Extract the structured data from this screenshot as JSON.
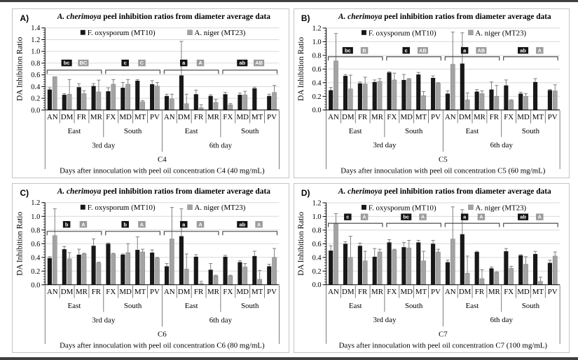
{
  "figure": {
    "panel_labels": [
      "A)",
      "B)",
      "C)",
      "D)"
    ],
    "title_italic": "A. cherimoya",
    "title_rest": " peel inhibition ratios from diameter average data",
    "ylabel": "DA Inhibition Ratio",
    "legend": [
      "F. oxysporum (MT10)",
      "A. niger (MT23)"
    ],
    "colors": {
      "mt10_bar": "#181818",
      "mt23_bar": "#a3a3a3",
      "mt23_bar_edge": "#808080",
      "error_bar": "#7f7f7f",
      "gridline": "#d9d9d9",
      "axis": "#000000",
      "bracket": "#3d3d3d",
      "sig_box_black": "#141414",
      "sig_box_gray": "#9b9b9b",
      "sig_text": "#ffffff",
      "panel_border": "#c4c4c4",
      "frame_edge": "#3f3f3f",
      "background": "#ffffff"
    }
  },
  "chart_data": [
    {
      "type": "bar",
      "panel_label": "A)",
      "title": "A. cherimoya peel inhibition ratios from diameter average data",
      "ylabel": "DA Inhibition Ratio",
      "ylim": [
        0,
        1.4
      ],
      "ytick_step": 0.2,
      "grid": true,
      "legend_position": "top-inside",
      "categories": [
        "AN",
        "DM",
        "FR",
        "MR",
        "FX",
        "MD",
        "MT",
        "PV",
        "AN",
        "DM",
        "FR",
        "MR",
        "FX",
        "MD",
        "MT",
        "PV"
      ],
      "region_groups": [
        "East",
        "South",
        "East",
        "South"
      ],
      "day_groups": [
        "3rd day",
        "6th day"
      ],
      "conc_label": "C4",
      "xlabel": "Days after innoculation with peel oil concentration C4 (40 mg/mL)",
      "series": [
        {
          "name": "F. oxysporum (MT10)",
          "values": [
            0.35,
            0.26,
            0.39,
            0.41,
            0.32,
            0.38,
            0.5,
            0.44,
            0.24,
            0.59,
            0.27,
            0.24,
            0.27,
            0.26,
            0.37,
            0.24
          ],
          "err_top": [
            0.38,
            0.28,
            0.45,
            0.45,
            0.38,
            0.47,
            0.52,
            0.5,
            0.27,
            1.17,
            0.34,
            0.26,
            0.3,
            0.29,
            0.39,
            0.27
          ]
        },
        {
          "name": "A. niger (MT23)",
          "values": [
            0.57,
            0.27,
            0.28,
            0.31,
            0.44,
            0.44,
            0.14,
            0.41,
            0.19,
            0.11,
            0.04,
            0.13,
            0.09,
            0.26,
            0.0,
            0.3
          ],
          "err_top": [
            null,
            0.52,
            0.33,
            0.51,
            0.52,
            0.52,
            0.16,
            0.47,
            0.27,
            0.27,
            0.09,
            0.18,
            0.11,
            0.32,
            null,
            0.42
          ]
        }
      ],
      "sig_brackets": [
        {
          "mt10": "bc",
          "mt23": "BC"
        },
        {
          "mt10": "c",
          "mt23": "C"
        },
        {
          "mt10": "a",
          "mt23": "A"
        },
        {
          "mt10": "ab",
          "mt23": "AB"
        }
      ],
      "bracket_y": 0.68,
      "bracket_label_y": 0.8
    },
    {
      "type": "bar",
      "panel_label": "B)",
      "title": "A. cherimoya peel inhibition ratios from diameter average data",
      "ylabel": "DA Inhibition Ratio",
      "ylim": [
        0,
        1.2
      ],
      "ytick_step": 0.2,
      "grid": true,
      "legend_position": "top-inside",
      "categories": [
        "AN",
        "DM",
        "FR",
        "MR",
        "FX",
        "MD",
        "MT",
        "PV",
        "AN",
        "DM",
        "MR",
        "FR",
        "FX",
        "MD",
        "MT",
        "PV"
      ],
      "region_groups": [
        "East",
        "South",
        "East",
        "South"
      ],
      "day_groups": [
        "3rd day",
        "6th day"
      ],
      "conc_label": "C5",
      "xlabel": "Days after innoculation with peel oil concentration C5 (60 mg/mL)",
      "series": [
        {
          "name": "F. oxysporum (MT10)",
          "values": [
            0.29,
            0.5,
            0.39,
            0.41,
            0.55,
            0.44,
            0.52,
            0.47,
            0.24,
            0.68,
            0.27,
            0.3,
            0.36,
            0.24,
            0.41,
            0.29
          ],
          "err_top": [
            0.33,
            0.52,
            0.41,
            0.44,
            0.56,
            0.52,
            0.55,
            0.5,
            0.28,
            1.13,
            0.3,
            0.41,
            0.44,
            0.26,
            0.46,
            0.3
          ]
        },
        {
          "name": "A. niger (MT23)",
          "values": [
            0.72,
            0.31,
            0.38,
            0.42,
            0.44,
            0.45,
            0.21,
            0.39,
            0.67,
            0.15,
            0.24,
            0.2,
            0.14,
            0.2,
            0.0,
            0.28
          ],
          "err_top": [
            1.12,
            0.51,
            0.48,
            0.46,
            0.54,
            0.46,
            0.27,
            0.4,
            1.14,
            0.25,
            0.28,
            0.36,
            0.15,
            0.24,
            null,
            0.37
          ]
        }
      ],
      "sig_brackets": [
        {
          "mt10": "bc",
          "mt23": "B"
        },
        {
          "mt10": "c",
          "mt23": "AB"
        },
        {
          "mt10": "a",
          "mt23": "AB"
        },
        {
          "mt10": "ab",
          "mt23": "A"
        }
      ],
      "bracket_y": 0.78,
      "bracket_label_y": 0.87
    },
    {
      "type": "bar",
      "panel_label": "C)",
      "title": "A. cherimoya peel inhibition ratios from diameter average data",
      "ylabel": "DA Inhibition Ratio",
      "ylim": [
        0,
        1.2
      ],
      "ytick_step": 0.2,
      "grid": true,
      "legend_position": "top-inside",
      "categories": [
        "AN",
        "DM",
        "MR",
        "FR",
        "FX",
        "MD",
        "MT",
        "PV",
        "AN",
        "DM",
        "FR",
        "MR",
        "FX",
        "MD",
        "MT",
        "PV"
      ],
      "region_groups": [
        "East",
        "South",
        "East",
        "South"
      ],
      "day_groups": [
        "3rd day",
        "6th day"
      ],
      "conc_label": "C6",
      "xlabel": "Days after innoculation with peel oil concentration C6 (80 mg/mL)",
      "series": [
        {
          "name": "F. oxysporum (MT10)",
          "values": [
            0.39,
            0.52,
            0.44,
            0.57,
            0.6,
            0.44,
            0.51,
            0.47,
            0.27,
            0.71,
            0.41,
            0.22,
            0.41,
            0.33,
            0.42,
            0.27
          ],
          "err_top": [
            0.41,
            0.56,
            0.52,
            0.67,
            0.61,
            0.45,
            0.7,
            0.51,
            0.31,
            1.11,
            0.44,
            0.31,
            0.43,
            0.35,
            0.49,
            0.3
          ]
        },
        {
          "name": "A. niger (MT23)",
          "values": [
            0.72,
            0.38,
            0.45,
            0.32,
            0.45,
            0.47,
            0.48,
            0.39,
            0.67,
            0.23,
            0.02,
            0.13,
            0.13,
            0.26,
            0.08,
            0.4
          ],
          "err_top": [
            1.11,
            0.47,
            0.46,
            0.33,
            0.46,
            0.6,
            0.52,
            0.4,
            1.13,
            0.45,
            0.05,
            0.14,
            0.14,
            0.31,
            0.21,
            0.53
          ]
        }
      ],
      "sig_brackets": [
        {
          "mt10": "b",
          "mt23": "A"
        },
        {
          "mt10": "b",
          "mt23": "A"
        },
        {
          "mt10": "a",
          "mt23": "A"
        },
        {
          "mt10": "ab",
          "mt23": "A"
        }
      ],
      "bracket_y": 0.78,
      "bracket_label_y": 0.88
    },
    {
      "type": "bar",
      "panel_label": "D)",
      "title": "A. cherimoya peel inhibition ratios from diameter average data",
      "ylabel": "DA Inhibition Ratio",
      "ylim": [
        0,
        1.2
      ],
      "ytick_step": 0.2,
      "grid": true,
      "legend_position": "top-inside",
      "categories": [
        "AN",
        "DM",
        "FR",
        "MR",
        "FX",
        "MD",
        "MT",
        "PV",
        "AN",
        "DM",
        "FR",
        "MR",
        "FX",
        "MD",
        "MT",
        "PV"
      ],
      "region_groups": [
        "East",
        "South",
        "East",
        "South"
      ],
      "day_groups": [
        "3rd day",
        "6th day"
      ],
      "conc_label": "C7",
      "xlabel": "Days after innoculation with peel oil concentration C7 (100 mg/mL)",
      "series": [
        {
          "name": "F. oxysporum (MT10)",
          "values": [
            0.5,
            0.6,
            0.57,
            0.41,
            0.62,
            0.55,
            0.62,
            0.6,
            0.33,
            0.74,
            0.48,
            0.24,
            0.49,
            0.43,
            0.45,
            0.32
          ],
          "err_top": [
            0.57,
            0.63,
            0.61,
            0.53,
            0.66,
            0.62,
            0.65,
            0.65,
            0.36,
            1.1,
            0.49,
            0.26,
            0.53,
            0.44,
            0.49,
            0.36
          ]
        },
        {
          "name": "A. niger (MT23)",
          "values": [
            0.9,
            0.4,
            0.35,
            0.48,
            0.51,
            0.54,
            0.35,
            0.48,
            0.67,
            0.17,
            0.09,
            0.18,
            0.24,
            0.3,
            0.05,
            0.42
          ],
          "err_top": [
            1.04,
            0.71,
            0.49,
            0.52,
            0.52,
            0.65,
            0.49,
            0.52,
            1.14,
            0.42,
            0.22,
            0.19,
            0.27,
            0.41,
            0.11,
            0.48
          ]
        }
      ],
      "sig_brackets": [
        {
          "mt10": "c",
          "mt23": "A"
        },
        {
          "mt10": "bc",
          "mt23": "A"
        },
        {
          "mt10": "a",
          "mt23": "A"
        },
        {
          "mt10": "ab",
          "mt23": "A"
        }
      ],
      "bracket_y": 0.9,
      "bracket_label_y": 0.99
    }
  ]
}
